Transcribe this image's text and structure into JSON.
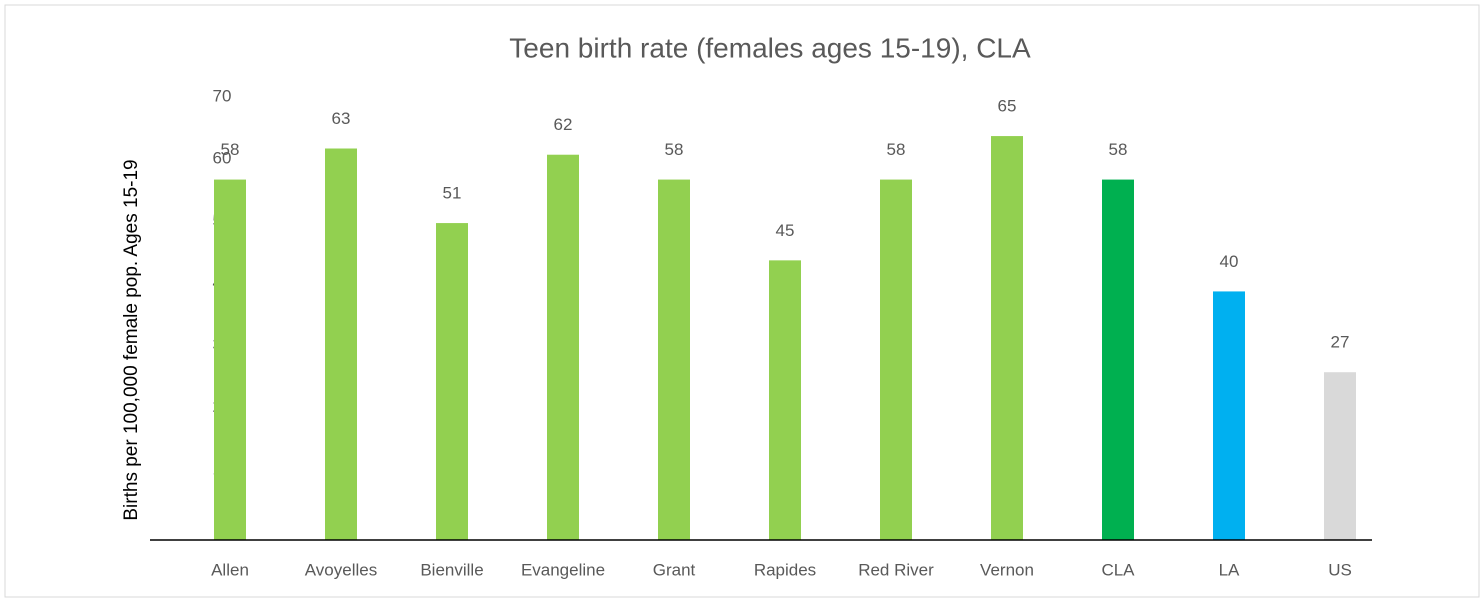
{
  "chart_data": {
    "type": "bar",
    "title": "Teen birth rate (females ages 15-19), CLA",
    "y_label": "Births per 100,000 female pop. Ages 15-19",
    "categories": [
      "Allen",
      "Avoyelles",
      "Bienville",
      "Evangeline",
      "Grant",
      "Rapides",
      "Red River",
      "Vernon",
      "CLA",
      "LA",
      "US"
    ],
    "values": [
      58,
      63,
      51,
      62,
      58,
      45,
      58,
      65,
      58,
      40,
      27
    ],
    "colors": [
      "#92d050",
      "#92d050",
      "#92d050",
      "#92d050",
      "#92d050",
      "#92d050",
      "#92d050",
      "#92d050",
      "#00b050",
      "#00b0f0",
      "#d9d9d9"
    ],
    "ylim": [
      0,
      70
    ],
    "yticks": [
      0,
      10,
      20,
      30,
      40,
      50,
      60,
      70
    ],
    "grid": false
  }
}
